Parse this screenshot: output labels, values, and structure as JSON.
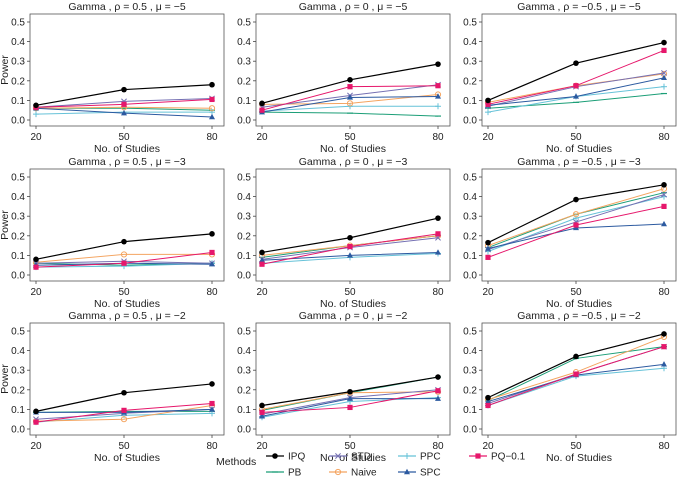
{
  "chart_data": {
    "type": "line",
    "x": [
      20,
      50,
      80
    ],
    "xlabel": "No. of Studies",
    "ylabel": "Power",
    "ylim": [
      0,
      0.5
    ],
    "yticks": [
      "0.0",
      "0.1",
      "0.2",
      "0.3",
      "0.4",
      "0.5"
    ],
    "legend": {
      "title": "Methods",
      "placement": "bottom",
      "entries": [
        {
          "key": "IPQ",
          "label": "IPQ",
          "color": "#000000",
          "marker": "dot"
        },
        {
          "key": "PB",
          "label": "PB",
          "color": "#1b9e77",
          "marker": "dash"
        },
        {
          "key": "STD",
          "label": "STD",
          "color": "#7570b3",
          "marker": "x"
        },
        {
          "key": "Naive",
          "label": "Naive",
          "color": "#f4a460",
          "marker": "circle-open"
        },
        {
          "key": "PPC",
          "label": "PPC",
          "color": "#66c2d8",
          "marker": "plus"
        },
        {
          "key": "SPC",
          "label": "SPC",
          "color": "#2c5aa0",
          "marker": "triangle"
        },
        {
          "key": "PQ01",
          "label": "PQ−0.1",
          "color": "#e6176b",
          "marker": "square"
        }
      ]
    },
    "panels": [
      {
        "title": "Gamma , ρ = 0.5 , μ = −5",
        "series": {
          "IPQ": [
            0.075,
            0.155,
            0.18
          ],
          "PB": [
            0.06,
            0.06,
            0.05
          ],
          "STD": [
            0.065,
            0.095,
            0.11
          ],
          "Naive": [
            0.06,
            0.065,
            0.06
          ],
          "PPC": [
            0.03,
            0.04,
            0.04
          ],
          "SPC": [
            0.06,
            0.035,
            0.015
          ],
          "PQ01": [
            0.065,
            0.08,
            0.105
          ]
        }
      },
      {
        "title": "Gamma , ρ = 0 , μ = −5",
        "series": {
          "IPQ": [
            0.085,
            0.205,
            0.285
          ],
          "PB": [
            0.04,
            0.035,
            0.02
          ],
          "STD": [
            0.065,
            0.125,
            0.18
          ],
          "Naive": [
            0.08,
            0.085,
            0.13
          ],
          "PPC": [
            0.045,
            0.07,
            0.07
          ],
          "SPC": [
            0.04,
            0.115,
            0.12
          ],
          "PQ01": [
            0.05,
            0.17,
            0.175
          ]
        }
      },
      {
        "title": "Gamma , ρ = −0.5 , μ = −5",
        "series": {
          "IPQ": [
            0.1,
            0.29,
            0.395
          ],
          "PB": [
            0.06,
            0.09,
            0.135
          ],
          "STD": [
            0.07,
            0.17,
            0.24
          ],
          "Naive": [
            0.09,
            0.175,
            0.235
          ],
          "PPC": [
            0.04,
            0.12,
            0.17
          ],
          "SPC": [
            0.075,
            0.12,
            0.215
          ],
          "PQ01": [
            0.08,
            0.175,
            0.355
          ]
        }
      },
      {
        "title": "Gamma , ρ = 0.5 , μ = −3",
        "series": {
          "IPQ": [
            0.08,
            0.17,
            0.21
          ],
          "PB": [
            0.06,
            0.05,
            0.06
          ],
          "STD": [
            0.06,
            0.07,
            0.06
          ],
          "Naive": [
            0.065,
            0.105,
            0.105
          ],
          "PPC": [
            0.04,
            0.045,
            0.06
          ],
          "SPC": [
            0.05,
            0.06,
            0.055
          ],
          "PQ01": [
            0.04,
            0.06,
            0.115
          ]
        }
      },
      {
        "title": "Gamma , ρ = 0 , μ = −3",
        "series": {
          "IPQ": [
            0.115,
            0.19,
            0.29
          ],
          "PB": [
            0.09,
            0.15,
            0.2
          ],
          "STD": [
            0.08,
            0.14,
            0.19
          ],
          "Naive": [
            0.1,
            0.15,
            0.2
          ],
          "PPC": [
            0.06,
            0.09,
            0.11
          ],
          "SPC": [
            0.075,
            0.1,
            0.115
          ],
          "PQ01": [
            0.055,
            0.145,
            0.21
          ]
        }
      },
      {
        "title": "Gamma , ρ = −0.5 , μ = −3",
        "series": {
          "IPQ": [
            0.165,
            0.385,
            0.46
          ],
          "PB": [
            0.14,
            0.31,
            0.42
          ],
          "STD": [
            0.13,
            0.27,
            0.41
          ],
          "Naive": [
            0.15,
            0.31,
            0.44
          ],
          "PPC": [
            0.12,
            0.29,
            0.4
          ],
          "SPC": [
            0.135,
            0.24,
            0.26
          ],
          "PQ01": [
            0.09,
            0.255,
            0.35
          ]
        }
      },
      {
        "title": "Gamma , ρ = 0.5 , μ = −2",
        "series": {
          "IPQ": [
            0.09,
            0.185,
            0.23
          ],
          "PB": [
            0.085,
            0.09,
            0.09
          ],
          "STD": [
            0.05,
            0.08,
            0.1
          ],
          "Naive": [
            0.04,
            0.05,
            0.12
          ],
          "PPC": [
            0.035,
            0.07,
            0.08
          ],
          "SPC": [
            0.085,
            0.085,
            0.1
          ],
          "PQ01": [
            0.035,
            0.095,
            0.13
          ]
        }
      },
      {
        "title": "Gamma , ρ = 0 , μ = −2",
        "series": {
          "IPQ": [
            0.12,
            0.19,
            0.265
          ],
          "PB": [
            0.095,
            0.185,
            0.265
          ],
          "STD": [
            0.075,
            0.16,
            0.2
          ],
          "Naive": [
            0.1,
            0.185,
            0.19
          ],
          "PPC": [
            0.06,
            0.14,
            0.16
          ],
          "SPC": [
            0.065,
            0.155,
            0.155
          ],
          "PQ01": [
            0.085,
            0.11,
            0.195
          ]
        }
      },
      {
        "title": "Gamma , ρ = −0.5 , μ = −2",
        "series": {
          "IPQ": [
            0.16,
            0.37,
            0.485
          ],
          "PB": [
            0.145,
            0.36,
            0.42
          ],
          "STD": [
            0.13,
            0.28,
            0.42
          ],
          "Naive": [
            0.15,
            0.29,
            0.47
          ],
          "PPC": [
            0.12,
            0.27,
            0.31
          ],
          "SPC": [
            0.14,
            0.275,
            0.33
          ],
          "PQ01": [
            0.12,
            0.28,
            0.42
          ]
        }
      }
    ]
  }
}
